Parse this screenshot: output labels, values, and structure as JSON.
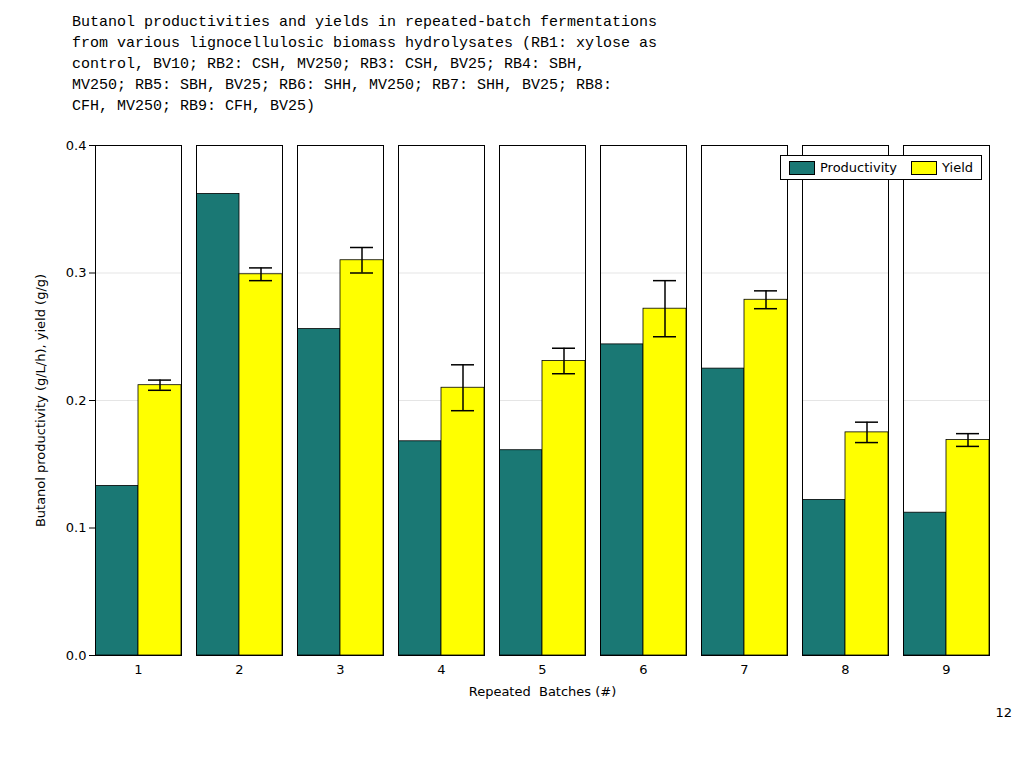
{
  "chart_data": {
    "type": "bar",
    "title": "Butanol productivities and yields in repeated-batch fermentations\nfrom various lignocellulosic biomass hydrolysates (RB1: xylose as\ncontrol, BV10; RB2: CSH, MV250; RB3: CSH, BV25; RB4: SBH,\nMV250; RB5: SBH, BV25; RB6: SHH, MV250; RB7: SHH, BV25; RB8:\nCFH, MV250; RB9: CFH, BV25)",
    "xlabel": "Repeated  Batches (#)",
    "ylabel": "Butanol productivity (g/L/h), yield (g/g)",
    "categories": [
      "1",
      "2",
      "3",
      "4",
      "5",
      "6",
      "7",
      "8",
      "9"
    ],
    "series": [
      {
        "name": "Productivity",
        "color": "#1a7874",
        "values": [
          0.133,
          0.362,
          0.256,
          0.168,
          0.161,
          0.244,
          0.225,
          0.122,
          0.112
        ]
      },
      {
        "name": "Yield",
        "color": "#FFFF00",
        "values": [
          0.212,
          0.299,
          0.31,
          0.21,
          0.231,
          0.272,
          0.279,
          0.175,
          0.169
        ],
        "errors": [
          0.004,
          0.005,
          0.01,
          0.018,
          0.01,
          0.022,
          0.007,
          0.008,
          0.005
        ]
      }
    ],
    "ylim": [
      0.0,
      0.4
    ],
    "yticks": [
      {
        "value": 0,
        "label": "0.0"
      },
      0.1,
      0.2,
      0.3,
      0.4
    ],
    "grid": true,
    "legend": "upper right",
    "annotations": [
      "12"
    ]
  }
}
